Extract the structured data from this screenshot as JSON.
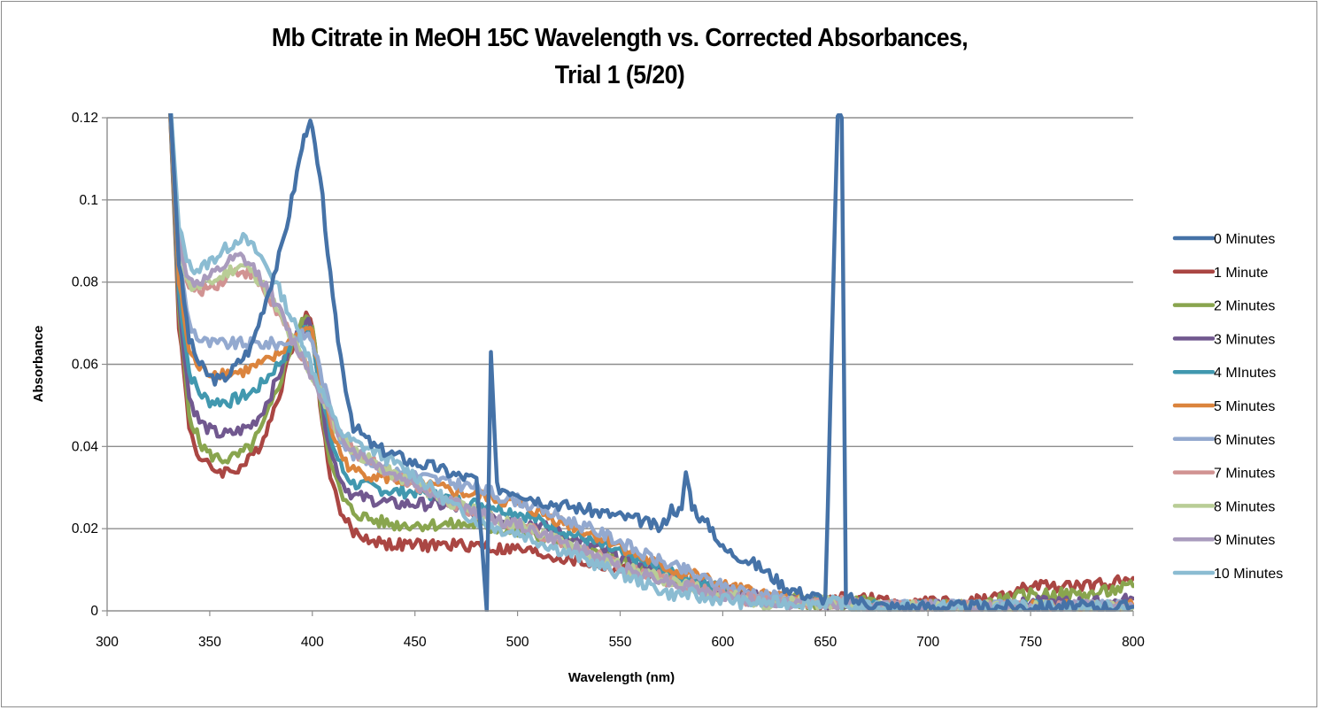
{
  "chart_data": {
    "type": "line",
    "title_lines": [
      "Mb Citrate in MeOH 15C Wavelength vs. Corrected Absorbances,",
      "Trial 1 (5/20)"
    ],
    "xlabel": "Wavelength (nm)",
    "ylabel": "Absorbance",
    "xlim": [
      300,
      800
    ],
    "ylim": [
      0,
      0.12
    ],
    "x_ticks": [
      "300",
      "350",
      "400",
      "450",
      "500",
      "550",
      "600",
      "650",
      "700",
      "750",
      "800"
    ],
    "x_tick_values": [
      300,
      350,
      400,
      450,
      500,
      550,
      600,
      650,
      700,
      750,
      800
    ],
    "y_ticks": [
      "0",
      "0.02",
      "0.04",
      "0.06",
      "0.08",
      "0.1",
      "0.12"
    ],
    "y_tick_values": [
      0,
      0.02,
      0.04,
      0.06,
      0.08,
      0.1,
      0.12
    ],
    "grid": "horizontal",
    "legend_position": "right",
    "x": [
      330,
      335,
      340,
      345,
      350,
      355,
      360,
      365,
      370,
      375,
      380,
      385,
      390,
      395,
      398,
      400,
      405,
      410,
      415,
      420,
      430,
      440,
      450,
      460,
      470,
      480,
      485,
      487,
      490,
      500,
      510,
      520,
      530,
      540,
      550,
      560,
      570,
      575,
      580,
      582,
      585,
      590,
      595,
      600,
      610,
      620,
      630,
      640,
      650,
      656,
      658,
      660,
      670,
      680,
      690,
      700,
      710,
      720,
      730,
      740,
      750,
      760,
      770,
      780,
      790,
      800
    ],
    "series": [
      {
        "name": "0 Minutes",
        "color": "#4572a7",
        "values": [
          0.13,
          0.085,
          0.066,
          0.06,
          0.057,
          0.056,
          0.058,
          0.061,
          0.064,
          0.072,
          0.08,
          0.088,
          0.1,
          0.113,
          0.119,
          0.117,
          0.1,
          0.075,
          0.058,
          0.045,
          0.04,
          0.038,
          0.036,
          0.035,
          0.033,
          0.032,
          0.0,
          0.063,
          0.03,
          0.029,
          0.027,
          0.026,
          0.025,
          0.024,
          0.023,
          0.022,
          0.02,
          0.025,
          0.024,
          0.034,
          0.026,
          0.022,
          0.02,
          0.015,
          0.013,
          0.01,
          0.006,
          0.004,
          0.003,
          0.12,
          0.12,
          0.003,
          0.002,
          0.001,
          0.001,
          0.001,
          0.001,
          0.001,
          0.001,
          0.001,
          0.001,
          0.001,
          0.001,
          0.001,
          0.001,
          0.001
        ]
      },
      {
        "name": "1 Minute",
        "color": "#aa4643",
        "values": [
          0.13,
          0.07,
          0.045,
          0.037,
          0.035,
          0.034,
          0.034,
          0.035,
          0.037,
          0.041,
          0.047,
          0.055,
          0.064,
          0.07,
          0.072,
          0.07,
          0.045,
          0.03,
          0.023,
          0.019,
          0.017,
          0.016,
          0.016,
          0.016,
          0.016,
          0.016,
          0.016,
          0.015,
          0.015,
          0.015,
          0.014,
          0.013,
          0.012,
          0.011,
          0.01,
          0.009,
          0.008,
          0.008,
          0.007,
          0.007,
          0.007,
          0.006,
          0.005,
          0.005,
          0.004,
          0.003,
          0.003,
          0.002,
          0.002,
          0.003,
          0.003,
          0.003,
          0.003,
          0.002,
          0.002,
          0.002,
          0.002,
          0.002,
          0.003,
          0.004,
          0.006,
          0.006,
          0.006,
          0.006,
          0.007,
          0.008
        ]
      },
      {
        "name": "2 Minutes",
        "color": "#89a54e",
        "values": [
          0.13,
          0.072,
          0.048,
          0.041,
          0.038,
          0.037,
          0.037,
          0.038,
          0.04,
          0.044,
          0.05,
          0.057,
          0.065,
          0.07,
          0.071,
          0.069,
          0.047,
          0.034,
          0.027,
          0.024,
          0.022,
          0.021,
          0.021,
          0.021,
          0.021,
          0.021,
          0.02,
          0.02,
          0.02,
          0.019,
          0.018,
          0.017,
          0.016,
          0.014,
          0.012,
          0.01,
          0.009,
          0.008,
          0.007,
          0.007,
          0.007,
          0.006,
          0.005,
          0.005,
          0.004,
          0.003,
          0.003,
          0.002,
          0.002,
          0.002,
          0.002,
          0.002,
          0.002,
          0.001,
          0.001,
          0.001,
          0.001,
          0.001,
          0.002,
          0.003,
          0.004,
          0.004,
          0.004,
          0.004,
          0.005,
          0.006
        ]
      },
      {
        "name": "3 Minutes",
        "color": "#71588f",
        "values": [
          0.13,
          0.075,
          0.052,
          0.046,
          0.044,
          0.043,
          0.043,
          0.044,
          0.045,
          0.048,
          0.053,
          0.059,
          0.065,
          0.069,
          0.07,
          0.068,
          0.049,
          0.037,
          0.031,
          0.028,
          0.027,
          0.026,
          0.026,
          0.026,
          0.025,
          0.024,
          0.024,
          0.024,
          0.023,
          0.022,
          0.021,
          0.019,
          0.017,
          0.015,
          0.013,
          0.011,
          0.01,
          0.009,
          0.008,
          0.008,
          0.008,
          0.007,
          0.006,
          0.005,
          0.004,
          0.003,
          0.003,
          0.002,
          0.002,
          0.002,
          0.002,
          0.002,
          0.001,
          0.001,
          0.001,
          0.001,
          0.001,
          0.001,
          0.001,
          0.001,
          0.002,
          0.002,
          0.002,
          0.002,
          0.002,
          0.003
        ]
      },
      {
        "name": "4 MInutes",
        "color": "#4198af",
        "values": [
          0.13,
          0.078,
          0.058,
          0.053,
          0.051,
          0.051,
          0.051,
          0.052,
          0.053,
          0.055,
          0.058,
          0.061,
          0.065,
          0.068,
          0.069,
          0.067,
          0.051,
          0.04,
          0.034,
          0.031,
          0.03,
          0.029,
          0.029,
          0.028,
          0.027,
          0.026,
          0.026,
          0.026,
          0.025,
          0.024,
          0.022,
          0.02,
          0.018,
          0.016,
          0.014,
          0.012,
          0.01,
          0.009,
          0.008,
          0.008,
          0.008,
          0.007,
          0.006,
          0.005,
          0.004,
          0.003,
          0.003,
          0.002,
          0.002,
          0.002,
          0.002,
          0.002,
          0.001,
          0.001,
          0.001,
          0.001,
          0.001,
          0.001,
          0.001,
          0.001,
          0.001,
          0.001,
          0.001,
          0.001,
          0.001,
          0.001
        ]
      },
      {
        "name": "5 Minutes",
        "color": "#db843d",
        "values": [
          0.13,
          0.08,
          0.063,
          0.059,
          0.058,
          0.058,
          0.058,
          0.058,
          0.059,
          0.06,
          0.061,
          0.063,
          0.066,
          0.068,
          0.069,
          0.067,
          0.053,
          0.043,
          0.037,
          0.034,
          0.033,
          0.032,
          0.031,
          0.03,
          0.029,
          0.028,
          0.028,
          0.028,
          0.027,
          0.026,
          0.024,
          0.022,
          0.02,
          0.018,
          0.016,
          0.013,
          0.011,
          0.01,
          0.009,
          0.009,
          0.009,
          0.008,
          0.007,
          0.006,
          0.005,
          0.004,
          0.003,
          0.002,
          0.002,
          0.002,
          0.002,
          0.002,
          0.001,
          0.001,
          0.001,
          0.001,
          0.001,
          0.001,
          0.001,
          0.001,
          0.001,
          0.001,
          0.001,
          0.001,
          0.001,
          0.001
        ]
      },
      {
        "name": "6 Minutes",
        "color": "#93a9cf",
        "values": [
          0.13,
          0.085,
          0.07,
          0.066,
          0.065,
          0.065,
          0.065,
          0.065,
          0.065,
          0.065,
          0.065,
          0.065,
          0.066,
          0.067,
          0.067,
          0.066,
          0.056,
          0.047,
          0.041,
          0.038,
          0.036,
          0.034,
          0.033,
          0.032,
          0.031,
          0.03,
          0.029,
          0.029,
          0.028,
          0.027,
          0.025,
          0.023,
          0.021,
          0.019,
          0.017,
          0.014,
          0.012,
          0.011,
          0.01,
          0.01,
          0.009,
          0.008,
          0.007,
          0.006,
          0.005,
          0.004,
          0.003,
          0.002,
          0.002,
          0.002,
          0.002,
          0.002,
          0.001,
          0.001,
          0.001,
          0.001,
          0.001,
          0.001,
          0.001,
          0.001,
          0.001,
          0.001,
          0.001,
          0.001,
          0.001,
          0.001
        ]
      },
      {
        "name": "7 Minutes",
        "color": "#d19392",
        "values": [
          0.13,
          0.09,
          0.078,
          0.078,
          0.079,
          0.08,
          0.082,
          0.083,
          0.082,
          0.079,
          0.075,
          0.071,
          0.066,
          0.062,
          0.059,
          0.057,
          0.052,
          0.046,
          0.042,
          0.039,
          0.036,
          0.033,
          0.031,
          0.028,
          0.026,
          0.024,
          0.023,
          0.023,
          0.022,
          0.021,
          0.019,
          0.017,
          0.015,
          0.013,
          0.011,
          0.009,
          0.008,
          0.007,
          0.006,
          0.006,
          0.006,
          0.005,
          0.004,
          0.004,
          0.003,
          0.002,
          0.002,
          0.002,
          0.002,
          0.002,
          0.002,
          0.002,
          0.001,
          0.001,
          0.001,
          0.001,
          0.001,
          0.001,
          0.001,
          0.001,
          0.001,
          0.001,
          0.001,
          0.001,
          0.001,
          0.001
        ]
      },
      {
        "name": "8 Minutes",
        "color": "#b9cd96",
        "values": [
          0.13,
          0.09,
          0.079,
          0.079,
          0.08,
          0.081,
          0.083,
          0.084,
          0.083,
          0.08,
          0.076,
          0.071,
          0.066,
          0.062,
          0.059,
          0.057,
          0.052,
          0.046,
          0.042,
          0.039,
          0.036,
          0.033,
          0.031,
          0.028,
          0.026,
          0.024,
          0.023,
          0.023,
          0.022,
          0.021,
          0.019,
          0.017,
          0.015,
          0.013,
          0.011,
          0.009,
          0.008,
          0.007,
          0.006,
          0.006,
          0.006,
          0.005,
          0.004,
          0.004,
          0.003,
          0.002,
          0.002,
          0.002,
          0.002,
          0.002,
          0.002,
          0.002,
          0.001,
          0.001,
          0.001,
          0.001,
          0.001,
          0.001,
          0.001,
          0.001,
          0.001,
          0.001,
          0.001,
          0.001,
          0.001,
          0.001
        ]
      },
      {
        "name": "9 Minutes",
        "color": "#a99bbd",
        "values": [
          0.13,
          0.09,
          0.08,
          0.08,
          0.081,
          0.083,
          0.085,
          0.086,
          0.084,
          0.081,
          0.077,
          0.072,
          0.066,
          0.062,
          0.059,
          0.057,
          0.052,
          0.046,
          0.042,
          0.039,
          0.036,
          0.033,
          0.031,
          0.028,
          0.026,
          0.024,
          0.023,
          0.023,
          0.022,
          0.021,
          0.019,
          0.017,
          0.015,
          0.013,
          0.011,
          0.009,
          0.008,
          0.007,
          0.006,
          0.006,
          0.006,
          0.005,
          0.004,
          0.004,
          0.003,
          0.002,
          0.002,
          0.002,
          0.002,
          0.002,
          0.002,
          0.002,
          0.001,
          0.001,
          0.001,
          0.001,
          0.001,
          0.001,
          0.001,
          0.001,
          0.001,
          0.001,
          0.001,
          0.001,
          0.001,
          0.001
        ]
      },
      {
        "name": "10 Minutes",
        "color": "#8bbcd2",
        "values": [
          0.13,
          0.093,
          0.084,
          0.083,
          0.085,
          0.087,
          0.089,
          0.091,
          0.089,
          0.086,
          0.082,
          0.077,
          0.071,
          0.066,
          0.062,
          0.059,
          0.053,
          0.047,
          0.043,
          0.041,
          0.039,
          0.036,
          0.033,
          0.029,
          0.025,
          0.022,
          0.021,
          0.021,
          0.02,
          0.019,
          0.017,
          0.015,
          0.013,
          0.011,
          0.009,
          0.007,
          0.005,
          0.004,
          0.004,
          0.004,
          0.004,
          0.003,
          0.003,
          0.003,
          0.002,
          0.002,
          0.002,
          0.002,
          0.002,
          0.002,
          0.002,
          0.001,
          0.001,
          0.001,
          0.001,
          0.001,
          0.001,
          0.001,
          0.001,
          0.001,
          0.001,
          0.001,
          0.001,
          0.001,
          0.001,
          0.001
        ]
      }
    ]
  }
}
